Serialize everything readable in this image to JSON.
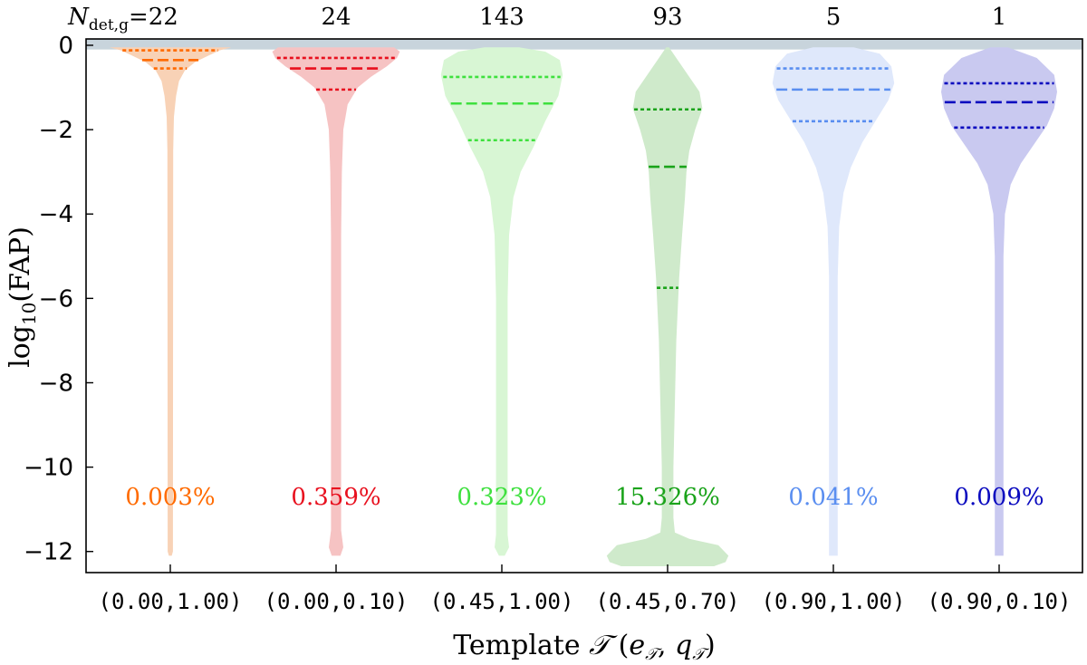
{
  "chart_data": {
    "type": "violin",
    "ylabel": "log10(FAP)",
    "xlabel": "Template 𝒯 (e_𝒯, q_𝒯)",
    "count_prefix": "N_det,g=",
    "ylim": [
      -12.5,
      0.15
    ],
    "yticks": [
      0,
      -2,
      -4,
      -6,
      -8,
      -10,
      -12
    ],
    "ytick_labels": [
      "0",
      "−2",
      "−4",
      "−6",
      "−8",
      "−10",
      "−12"
    ],
    "shaded_band": [
      -0.1,
      0.15
    ],
    "categories": [
      "(0.00,1.00)",
      "(0.00,0.10)",
      "(0.45,1.00)",
      "(0.45,0.70)",
      "(0.90,1.00)",
      "(0.90,0.10)"
    ],
    "violins": [
      {
        "label": "(0.00,1.00)",
        "count": "22",
        "count_text": "N_det,g=22",
        "percent": "0.003%",
        "color": "#ff6a00",
        "fill": "#f8d2b6",
        "quartiles": {
          "q1": -0.55,
          "median": -0.35,
          "q3": -0.12
        },
        "profile": [
          [
            -0.05,
            0.42
          ],
          [
            -0.12,
            0.34
          ],
          [
            -0.25,
            0.26
          ],
          [
            -0.4,
            0.17
          ],
          [
            -0.6,
            0.1
          ],
          [
            -0.85,
            0.06
          ],
          [
            -1.2,
            0.04
          ],
          [
            -1.7,
            0.025
          ],
          [
            -2.5,
            0.02
          ],
          [
            -12,
            0.018
          ],
          [
            -12.1,
            0.01
          ]
        ]
      },
      {
        "label": "(0.00,0.10)",
        "count": "24",
        "count_text": "24",
        "percent": "0.359%",
        "color": "#e8101e",
        "fill": "#f6c3c3",
        "quartiles": {
          "q1": -1.05,
          "median": -0.55,
          "q3": -0.3
        },
        "profile": [
          [
            -0.05,
            0.4
          ],
          [
            -0.15,
            0.44
          ],
          [
            -0.3,
            0.42
          ],
          [
            -0.5,
            0.35
          ],
          [
            -0.75,
            0.24
          ],
          [
            -1.0,
            0.15
          ],
          [
            -1.4,
            0.08
          ],
          [
            -2.0,
            0.05
          ],
          [
            -3.0,
            0.04
          ],
          [
            -4.5,
            0.035
          ],
          [
            -11.5,
            0.035
          ],
          [
            -11.9,
            0.05
          ],
          [
            -12.1,
            0.03
          ]
        ]
      },
      {
        "label": "(0.45,1.00)",
        "count": "143",
        "count_text": "143",
        "percent": "0.323%",
        "color": "#3ee03e",
        "fill": "#d8f6d4",
        "quartiles": {
          "q1": -2.25,
          "median": -1.38,
          "q3": -0.75
        },
        "profile": [
          [
            -0.05,
            0.12
          ],
          [
            -0.15,
            0.3
          ],
          [
            -0.35,
            0.4
          ],
          [
            -0.7,
            0.42
          ],
          [
            -1.2,
            0.39
          ],
          [
            -1.8,
            0.3
          ],
          [
            -2.4,
            0.22
          ],
          [
            -3.0,
            0.13
          ],
          [
            -3.6,
            0.08
          ],
          [
            -4.5,
            0.05
          ],
          [
            -6.0,
            0.04
          ],
          [
            -11.6,
            0.04
          ],
          [
            -11.9,
            0.05
          ],
          [
            -12.1,
            0.02
          ]
        ]
      },
      {
        "label": "(0.45,0.70)",
        "count": "93",
        "count_text": "93",
        "percent": "15.326%",
        "color": "#1aa31a",
        "fill": "#cfeacb",
        "quartiles": {
          "q1": -5.75,
          "median": -2.88,
          "q3": -1.52
        },
        "profile": [
          [
            -0.05,
            0.01
          ],
          [
            -0.3,
            0.06
          ],
          [
            -0.7,
            0.14
          ],
          [
            -1.1,
            0.22
          ],
          [
            -1.5,
            0.24
          ],
          [
            -2.0,
            0.19
          ],
          [
            -2.5,
            0.15
          ],
          [
            -3.0,
            0.13
          ],
          [
            -3.6,
            0.12
          ],
          [
            -4.5,
            0.1
          ],
          [
            -5.5,
            0.08
          ],
          [
            -7.0,
            0.06
          ],
          [
            -8.5,
            0.05
          ],
          [
            -10.0,
            0.04
          ],
          [
            -11.2,
            0.04
          ],
          [
            -11.55,
            0.05
          ],
          [
            -11.7,
            0.15
          ],
          [
            -11.85,
            0.35
          ],
          [
            -12.1,
            0.42
          ],
          [
            -12.25,
            0.4
          ],
          [
            -12.35,
            0.32
          ]
        ]
      },
      {
        "label": "(0.90,1.00)",
        "count": "5",
        "count_text": "5",
        "percent": "0.041%",
        "color": "#5a8ef0",
        "fill": "#dfe8fb",
        "quartiles": {
          "q1": -1.8,
          "median": -1.05,
          "q3": -0.55
        },
        "profile": [
          [
            -0.05,
            0.14
          ],
          [
            -0.2,
            0.32
          ],
          [
            -0.5,
            0.4
          ],
          [
            -0.9,
            0.42
          ],
          [
            -1.3,
            0.38
          ],
          [
            -1.8,
            0.29
          ],
          [
            -2.3,
            0.2
          ],
          [
            -2.9,
            0.12
          ],
          [
            -3.5,
            0.07
          ],
          [
            -4.3,
            0.04
          ],
          [
            -5.5,
            0.03
          ],
          [
            -12.1,
            0.03
          ]
        ]
      },
      {
        "label": "(0.90,0.10)",
        "count": "1",
        "count_text": "1",
        "percent": "0.009%",
        "color": "#0b0bbf",
        "fill": "#c9c9f0",
        "quartiles": {
          "q1": -1.95,
          "median": -1.35,
          "q3": -0.9
        },
        "profile": [
          [
            -0.05,
            0.06
          ],
          [
            -0.3,
            0.26
          ],
          [
            -0.7,
            0.38
          ],
          [
            -1.1,
            0.4
          ],
          [
            -1.5,
            0.38
          ],
          [
            -1.9,
            0.33
          ],
          [
            -2.3,
            0.25
          ],
          [
            -2.8,
            0.15
          ],
          [
            -3.3,
            0.08
          ],
          [
            -4.0,
            0.04
          ],
          [
            -5.0,
            0.03
          ],
          [
            -12.1,
            0.03
          ]
        ]
      }
    ]
  }
}
